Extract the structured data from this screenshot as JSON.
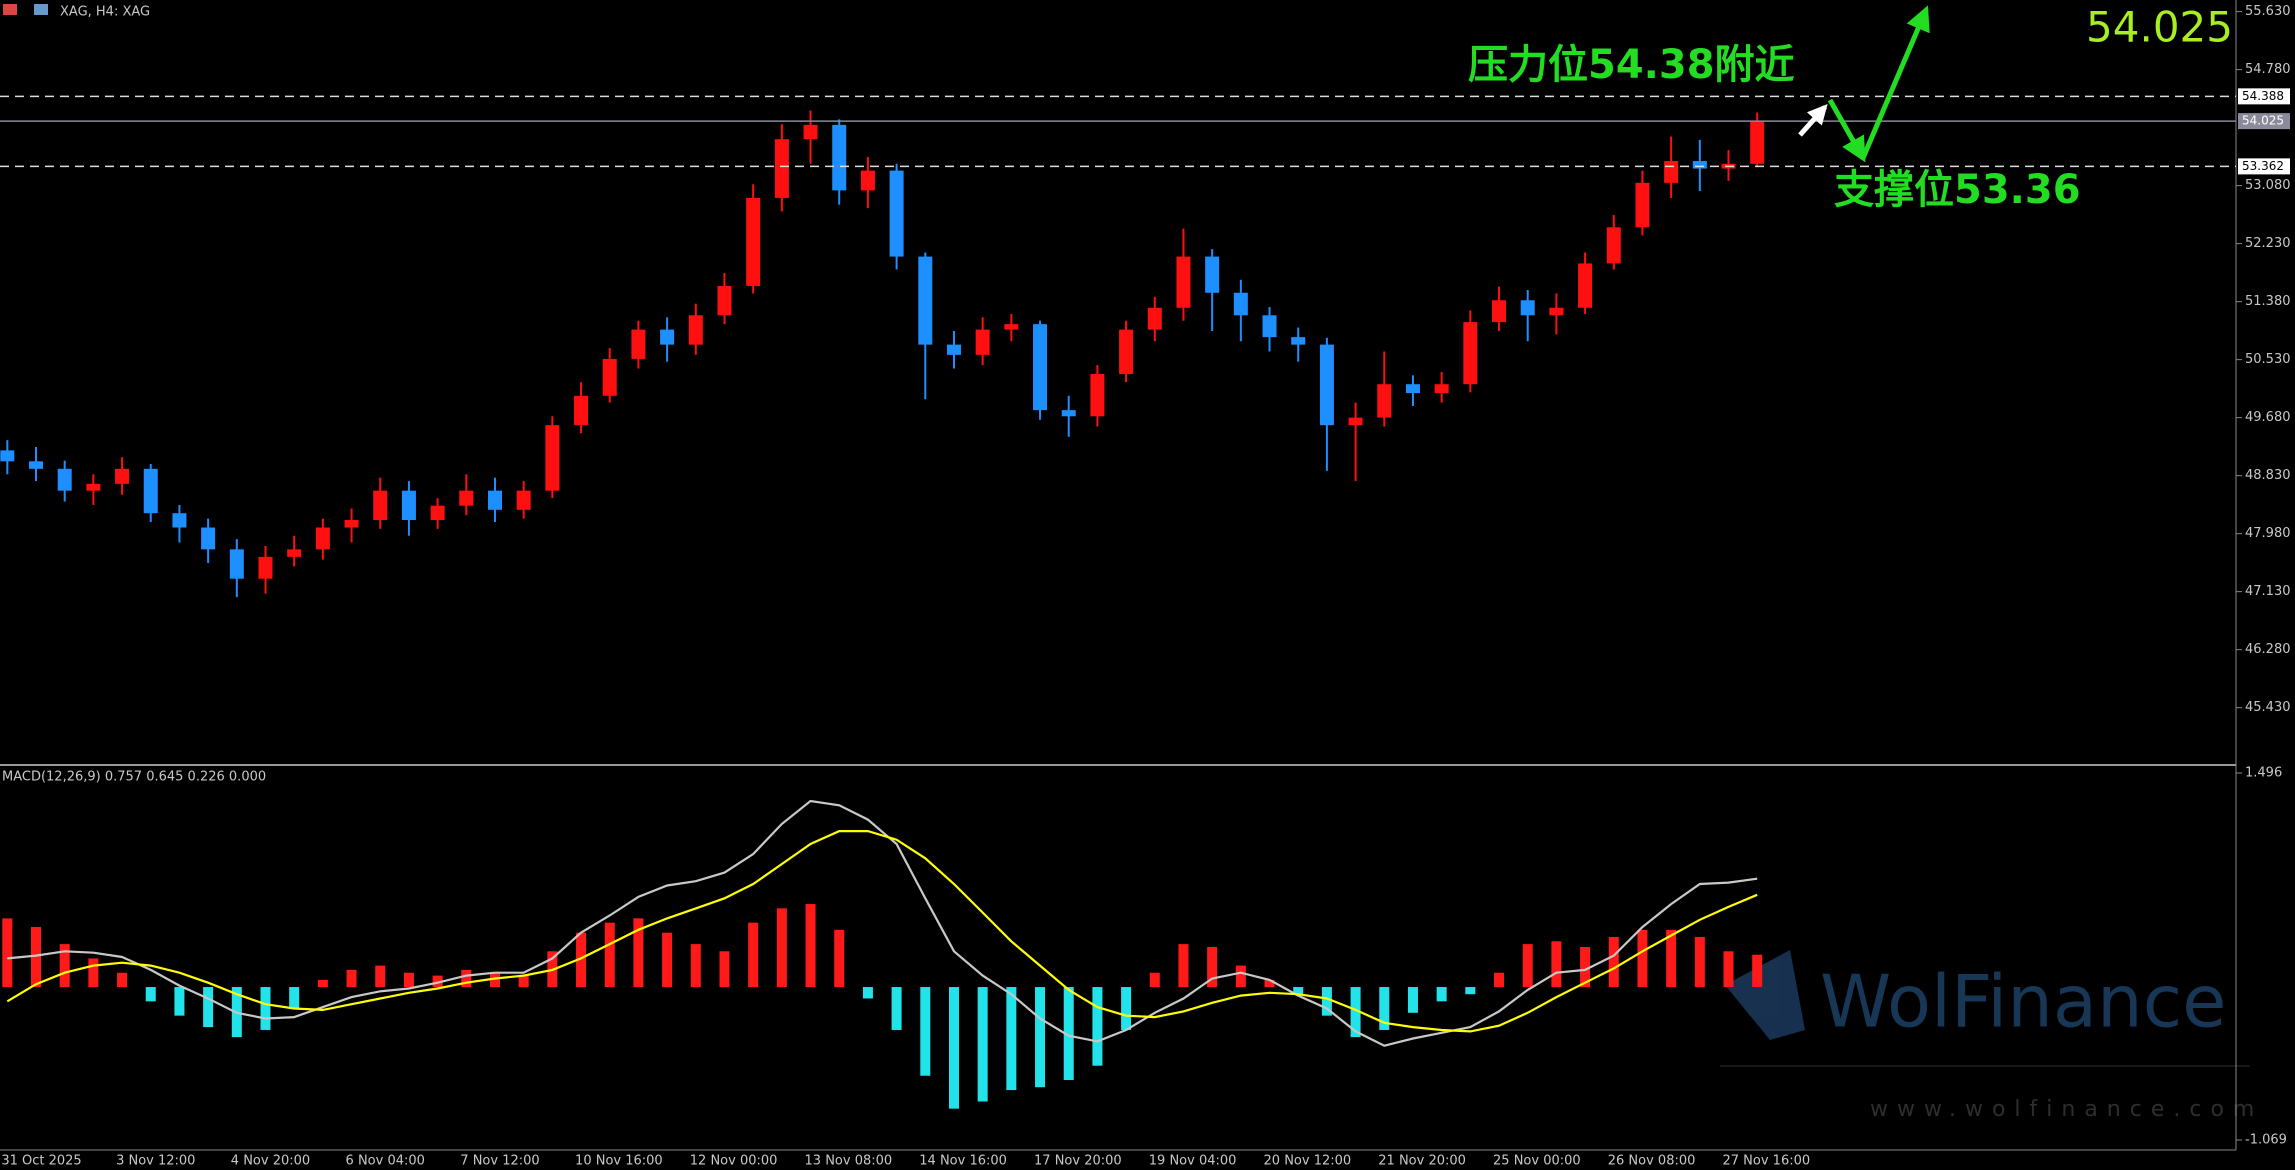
{
  "header": "XAG, H4: XAG",
  "watermark": {
    "name": "WolFinance",
    "url": "www.wolfinance.com"
  },
  "chart_data": [
    {
      "type": "candlestick",
      "annotations": [
        "压力位54.38附近",
        "支撑位53.36"
      ],
      "categories": [
        "31 Oct 2025",
        null,
        null,
        null,
        "3 Nov 12:00",
        null,
        null,
        null,
        "4 Nov 20:00",
        null,
        null,
        null,
        "6 Nov 04:00",
        null,
        null,
        null,
        "7 Nov 12:00",
        null,
        null,
        null,
        "10 Nov 16:00",
        null,
        null,
        null,
        "12 Nov 00:00",
        null,
        null,
        null,
        "13 Nov 08:00",
        null,
        null,
        null,
        "14 Nov 16:00",
        null,
        null,
        null,
        "17 Nov 20:00",
        null,
        null,
        null,
        "19 Nov 04:00",
        null,
        null,
        null,
        "20 Nov 12:00",
        null,
        null,
        null,
        "21 Nov 20:00",
        null,
        null,
        null,
        "25 Nov 00:00",
        null,
        null,
        null,
        "26 Nov 08:00",
        null,
        null,
        null,
        "27 Nov 16:00",
        null
      ],
      "open": [
        49.2,
        49.04,
        48.93,
        48.61,
        48.71,
        48.93,
        48.28,
        48.07,
        47.75,
        47.32,
        47.64,
        47.75,
        48.07,
        48.18,
        48.61,
        48.18,
        48.39,
        48.61,
        48.33,
        48.61,
        49.57,
        50.0,
        50.54,
        50.97,
        50.75,
        51.18,
        51.61,
        52.9,
        53.76,
        53.97,
        53.01,
        53.3,
        52.04,
        50.75,
        50.6,
        50.97,
        51.05,
        49.79,
        49.7,
        50.32,
        50.97,
        51.29,
        52.04,
        51.51,
        51.18,
        50.86,
        50.75,
        49.57,
        49.68,
        50.17,
        50.04,
        50.17,
        51.08,
        51.4,
        51.18,
        51.29,
        51.94,
        52.47,
        53.12,
        53.44,
        53.33,
        53.4
      ],
      "high": [
        49.35,
        49.25,
        49.05,
        48.85,
        49.1,
        49.0,
        48.4,
        48.2,
        47.9,
        47.8,
        47.95,
        48.2,
        48.35,
        48.8,
        48.75,
        48.5,
        48.85,
        48.8,
        48.75,
        49.7,
        50.2,
        50.7,
        51.1,
        51.15,
        51.35,
        51.8,
        53.1,
        53.98,
        54.18,
        54.05,
        53.5,
        53.4,
        52.1,
        50.95,
        51.15,
        51.2,
        51.1,
        50.0,
        50.45,
        51.1,
        51.45,
        52.45,
        52.15,
        51.7,
        51.3,
        51.0,
        50.85,
        49.9,
        50.65,
        50.3,
        50.35,
        51.25,
        51.6,
        51.55,
        51.5,
        52.1,
        52.65,
        53.3,
        53.8,
        53.75,
        53.6,
        54.15
      ],
      "low": [
        48.85,
        48.75,
        48.45,
        48.4,
        48.55,
        48.15,
        47.85,
        47.55,
        47.05,
        47.1,
        47.5,
        47.6,
        47.85,
        48.05,
        47.95,
        48.05,
        48.25,
        48.15,
        48.2,
        48.5,
        49.45,
        49.9,
        50.4,
        50.5,
        50.6,
        51.05,
        51.5,
        52.7,
        53.4,
        52.8,
        52.75,
        51.85,
        49.95,
        50.4,
        50.45,
        50.8,
        49.65,
        49.4,
        49.55,
        50.2,
        50.8,
        51.1,
        50.95,
        50.8,
        50.65,
        50.5,
        48.9,
        48.75,
        49.55,
        49.85,
        49.9,
        50.05,
        50.95,
        50.8,
        50.9,
        51.2,
        51.85,
        52.35,
        52.9,
        53.0,
        53.15,
        53.35
      ],
      "close": [
        49.04,
        48.93,
        48.61,
        48.71,
        48.93,
        48.28,
        48.07,
        47.75,
        47.32,
        47.64,
        47.75,
        48.07,
        48.18,
        48.61,
        48.18,
        48.39,
        48.61,
        48.33,
        48.61,
        49.57,
        50.0,
        50.54,
        50.97,
        50.75,
        51.18,
        51.61,
        52.9,
        53.76,
        53.97,
        53.01,
        53.3,
        52.04,
        50.75,
        50.6,
        50.97,
        51.05,
        49.79,
        49.7,
        50.32,
        50.97,
        51.29,
        52.04,
        51.51,
        51.18,
        50.86,
        50.75,
        49.57,
        49.68,
        50.17,
        50.04,
        50.17,
        51.08,
        51.4,
        51.18,
        51.29,
        51.94,
        52.47,
        53.12,
        53.44,
        53.33,
        53.4,
        54.03
      ],
      "up_color": "#ff1010",
      "down_color": "#1e8fff",
      "levels": [
        54.388,
        53.362
      ],
      "last_price": 54.025,
      "ylim": [
        44.59,
        55.8
      ],
      "yticks": [
        {
          "value": 55.63,
          "label": "55.630"
        },
        {
          "value": 54.78,
          "label": "54.780"
        },
        {
          "value": 53.08,
          "label": "53.080"
        },
        {
          "value": 52.23,
          "label": "52.230"
        },
        {
          "value": 51.38,
          "label": "51.380"
        },
        {
          "value": 50.53,
          "label": "50.530"
        },
        {
          "value": 49.68,
          "label": "49.680"
        },
        {
          "value": 48.83,
          "label": "48.830"
        },
        {
          "value": 47.98,
          "label": "47.980"
        },
        {
          "value": 47.13,
          "label": "47.130"
        },
        {
          "value": 46.28,
          "label": "46.280"
        },
        {
          "value": 45.43,
          "label": "45.430"
        }
      ]
    },
    {
      "type": "macd",
      "title": "MACD(12,26,9) 0.757 0.645 0.226 0.000",
      "series": [
        {
          "style": "histogram",
          "colors": [
            "#ff1a1a",
            "#22e3ea"
          ],
          "values": [
            0.48,
            0.42,
            0.3,
            0.2,
            0.1,
            -0.1,
            -0.2,
            -0.28,
            -0.35,
            -0.3,
            -0.15,
            0.05,
            0.12,
            0.15,
            0.1,
            0.08,
            0.12,
            0.1,
            0.08,
            0.25,
            0.38,
            0.45,
            0.48,
            0.38,
            0.3,
            0.25,
            0.45,
            0.55,
            0.58,
            0.4,
            -0.08,
            -0.3,
            -0.62,
            -0.85,
            -0.8,
            -0.72,
            -0.7,
            -0.65,
            -0.55,
            -0.3,
            0.1,
            0.3,
            0.28,
            0.15,
            0.05,
            -0.05,
            -0.2,
            -0.35,
            -0.3,
            -0.18,
            -0.1,
            -0.05,
            0.1,
            0.3,
            0.32,
            0.28,
            0.35,
            0.4,
            0.4,
            0.35,
            0.25,
            0.226
          ]
        },
        {
          "style": "line",
          "color": "#c8c8c8",
          "values": [
            0.2,
            0.22,
            0.25,
            0.24,
            0.21,
            0.12,
            0.01,
            -0.08,
            -0.18,
            -0.22,
            -0.21,
            -0.14,
            -0.07,
            -0.03,
            -0.01,
            0.03,
            0.08,
            0.1,
            0.1,
            0.2,
            0.38,
            0.5,
            0.63,
            0.71,
            0.74,
            0.8,
            0.93,
            1.14,
            1.3,
            1.27,
            1.17,
            1.0,
            0.62,
            0.25,
            0.08,
            -0.05,
            -0.22,
            -0.34,
            -0.38,
            -0.3,
            -0.18,
            -0.08,
            0.06,
            0.1,
            0.05,
            -0.06,
            -0.15,
            -0.31,
            -0.41,
            -0.36,
            -0.32,
            -0.28,
            -0.17,
            -0.02,
            0.1,
            0.12,
            0.22,
            0.42,
            0.58,
            0.72,
            0.73,
            0.757
          ]
        },
        {
          "style": "line",
          "color": "#ffff00",
          "values": [
            -0.1,
            0.02,
            0.1,
            0.15,
            0.17,
            0.15,
            0.1,
            0.03,
            -0.05,
            -0.12,
            -0.15,
            -0.16,
            -0.12,
            -0.08,
            -0.04,
            -0.01,
            0.03,
            0.06,
            0.08,
            0.12,
            0.2,
            0.3,
            0.4,
            0.48,
            0.55,
            0.62,
            0.72,
            0.86,
            1.0,
            1.09,
            1.09,
            1.03,
            0.9,
            0.72,
            0.52,
            0.32,
            0.15,
            -0.02,
            -0.14,
            -0.2,
            -0.21,
            -0.17,
            -0.11,
            -0.06,
            -0.04,
            -0.05,
            -0.08,
            -0.16,
            -0.25,
            -0.28,
            -0.3,
            -0.31,
            -0.27,
            -0.18,
            -0.07,
            0.03,
            0.13,
            0.25,
            0.36,
            0.47,
            0.56,
            0.645
          ]
        }
      ],
      "ylim": [
        -1.139,
        1.517
      ],
      "yticks": [
        1.496,
        -1.069
      ]
    }
  ]
}
